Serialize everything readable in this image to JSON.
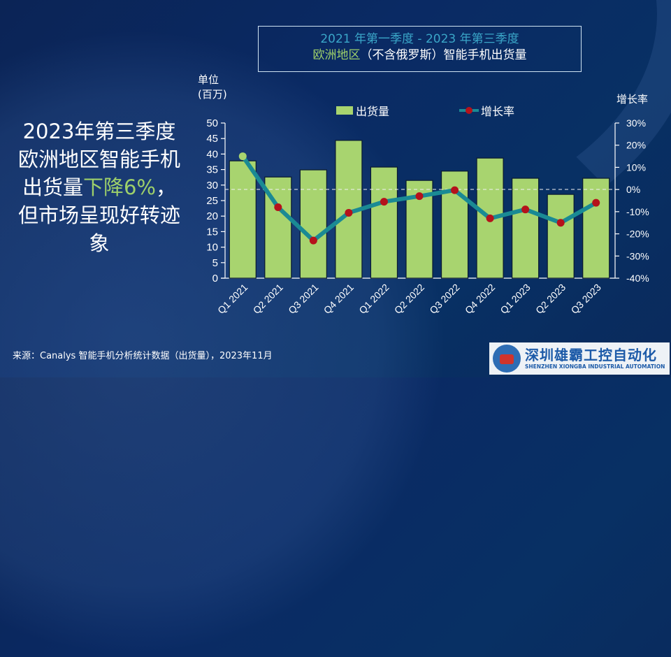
{
  "title": {
    "line1": "2021 年第一季度 - 2023 年第三季度",
    "line2_highlight": "欧洲地区",
    "line2_rest": "（不含俄罗斯）智能手机出货量"
  },
  "headline": {
    "part1": "2023年第三季度欧洲地区智能手机出货量",
    "highlight": "下降6%",
    "part2": "，但市场呈现好转迹象"
  },
  "unit_label": {
    "line1": "单位",
    "line2": "(百万)"
  },
  "right_axis_label": "增长率",
  "legend": {
    "bar": "出货量",
    "line": "增长率"
  },
  "source": "来源：Canalys 智能手机分析统计数据（出货量），2023年11月",
  "logo": {
    "cn": "深圳雄霸工控自动化",
    "en": "SHENZHEN XIONGBA INDUSTRIAL AUTOMATION"
  },
  "colors": {
    "bar": "#a8d46f",
    "line": "#1a8a94",
    "marker": "#b5121b",
    "first_marker": "#a8d46f",
    "title_accent": "#3aa6c8",
    "highlight": "#9ed06a"
  },
  "chart_data": {
    "type": "bar+line",
    "title": "2021 年第一季度 - 2023 年第三季度 欧洲地区（不含俄罗斯）智能手机出货量",
    "categories": [
      "Q1 2021",
      "Q2 2021",
      "Q3 2021",
      "Q4 2021",
      "Q1 2022",
      "Q2 2022",
      "Q3 2022",
      "Q4 2022",
      "Q1 2023",
      "Q2 2023",
      "Q3 2023"
    ],
    "series": [
      {
        "name": "出货量",
        "type": "bar",
        "axis": "left",
        "values": [
          37.8,
          32.6,
          34.9,
          44.4,
          35.8,
          31.5,
          34.5,
          38.7,
          32.2,
          27.0,
          32.2
        ]
      },
      {
        "name": "增长率",
        "type": "line",
        "axis": "right",
        "values": [
          15,
          -8,
          -23,
          -10.5,
          -5.5,
          -3,
          -0.3,
          -13,
          -9,
          -15,
          -6
        ]
      }
    ],
    "ylabel": "单位 (百万)",
    "ylim": [
      0,
      50
    ],
    "yticks": [
      0,
      5,
      10,
      15,
      20,
      25,
      30,
      35,
      40,
      45,
      50
    ],
    "y2label": "增长率",
    "y2lim": [
      -40,
      30
    ],
    "y2ticks": [
      "-40%",
      "-30%",
      "-20%",
      "-10%",
      "0%",
      "10%",
      "20%",
      "30%"
    ],
    "zero_reference_line": "dashed at 0%",
    "legend_position": "top"
  }
}
